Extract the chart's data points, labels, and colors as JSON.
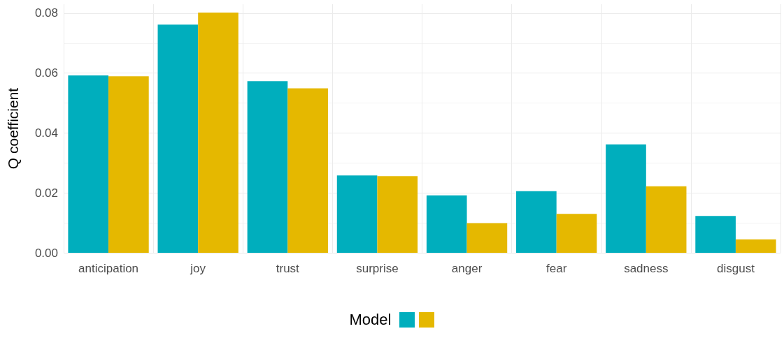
{
  "chart_data": {
    "type": "bar",
    "ylabel": "Q coefficient",
    "legend_title": "Model",
    "categories": [
      "anticipation",
      "joy",
      "trust",
      "surprise",
      "anger",
      "fear",
      "sadness",
      "disgust"
    ],
    "series": [
      {
        "color": "#00aebd",
        "values": [
          0.0592,
          0.0762,
          0.0573,
          0.0258,
          0.0192,
          0.0206,
          0.0362,
          0.0123
        ]
      },
      {
        "color": "#e5b800",
        "values": [
          0.0589,
          0.0802,
          0.0549,
          0.0256,
          0.0099,
          0.013,
          0.0222,
          0.0045
        ]
      }
    ],
    "ylim": [
      0,
      0.083
    ],
    "yticks": [
      {
        "value": 0,
        "label": "0.00"
      },
      {
        "value": 0.02,
        "label": "0.02"
      },
      {
        "value": 0.04,
        "label": "0.04"
      },
      {
        "value": 0.06,
        "label": "0.06"
      },
      {
        "value": 0.08,
        "label": "0.08"
      }
    ],
    "grid": true
  }
}
